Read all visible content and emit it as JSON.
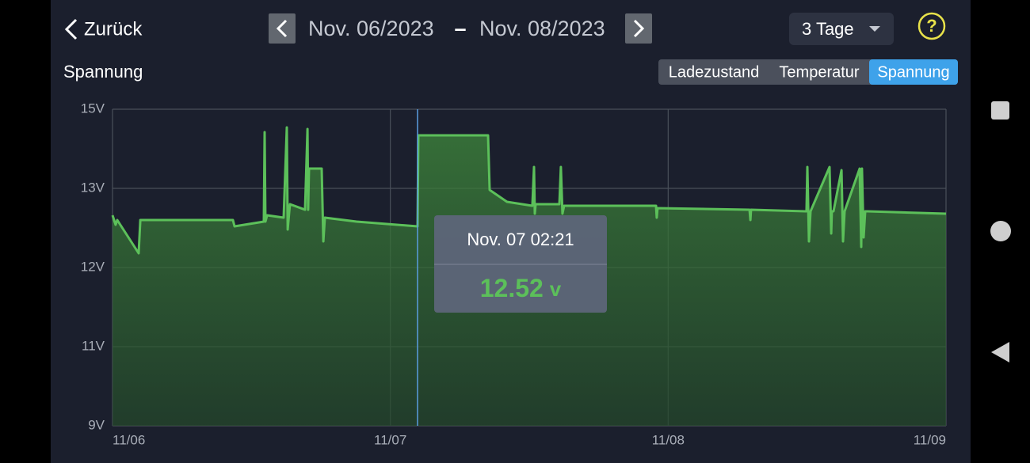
{
  "header": {
    "back": "Zurück",
    "date_from": "Nov. 06/2023",
    "separator": "–",
    "date_to": "Nov. 08/2023",
    "range": "3 Tage",
    "help": "?"
  },
  "tabs": {
    "items": [
      "Ladezustand",
      "Temperatur",
      "Spannung"
    ],
    "active": 2
  },
  "chart_data": {
    "type": "line",
    "title": "Spannung",
    "color": "#5cc05a",
    "grid": true,
    "x": [
      0,
      0.27,
      0.41,
      2.26,
      2.4,
      10.4,
      10.54,
      13.07,
      13.14,
      13.21,
      13.35,
      14.78,
      15.06,
      15.13,
      15.26,
      15.33,
      16.63,
      16.84,
      16.9,
      16.97,
      18.07,
      18.21,
      18.34,
      21.08,
      26.35,
      26.42,
      32.44,
      32.58,
      34.08,
      36.27,
      36.41,
      36.48,
      36.55,
      38.6,
      38.73,
      38.87,
      39.01,
      46.95,
      47.01,
      47.08,
      55.03,
      55.1,
      55.16,
      59.95,
      60.02,
      60.16,
      60.3,
      61.94,
      62.08,
      62.14,
      62.28,
      62.97,
      63.1,
      63.24,
      64.54,
      64.68,
      64.74,
      64.88,
      65.02,
      65.23,
      72
    ],
    "values": [
      12.66,
      12.54,
      12.6,
      12.18,
      12.6,
      12.6,
      12.52,
      12.58,
      14.42,
      12.58,
      12.66,
      12.63,
      14.54,
      12.48,
      12.7,
      12.8,
      12.73,
      14.5,
      12.73,
      13.5,
      13.5,
      12.33,
      12.63,
      12.58,
      12.52,
      14.34,
      14.34,
      12.98,
      12.83,
      12.78,
      13.54,
      12.68,
      12.8,
      12.8,
      13.54,
      12.68,
      12.78,
      12.78,
      12.63,
      12.75,
      12.73,
      12.6,
      12.73,
      12.71,
      13.54,
      12.33,
      12.71,
      13.54,
      12.43,
      12.71,
      12.71,
      13.46,
      12.33,
      12.71,
      13.5,
      12.26,
      13.5,
      12.38,
      12.71,
      12.71,
      12.68
    ],
    "xlim": [
      0,
      72
    ],
    "xticks": [
      {
        "value": 0,
        "label": "11/06"
      },
      {
        "value": 24,
        "label": "11/07"
      },
      {
        "value": 48,
        "label": "11/08"
      },
      {
        "value": 72,
        "label": "11/09"
      }
    ],
    "ylim": [
      9,
      15
    ],
    "yticks": [
      {
        "value": 9,
        "label": "9V"
      },
      {
        "value": 11,
        "label": "11V"
      },
      {
        "value": 12,
        "label": "12V"
      },
      {
        "value": 13,
        "label": "13V"
      },
      {
        "value": 15,
        "label": "15V"
      }
    ],
    "cursor": {
      "x": 26.35,
      "label": "Nov. 07 02:21",
      "value": 12.52,
      "unit": "v"
    }
  }
}
